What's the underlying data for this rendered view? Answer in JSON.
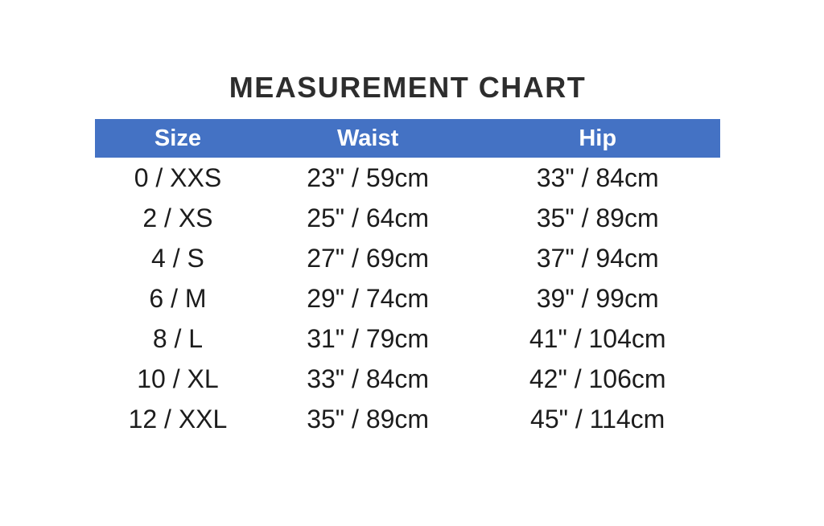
{
  "title": "MEASUREMENT CHART",
  "table": {
    "header_bg": "#4472C4",
    "header_text_color": "#FFFFFF",
    "body_text_color": "#1C1C1C",
    "columns": [
      "Size",
      "Waist",
      "Hip"
    ],
    "rows": [
      [
        "0 / XXS",
        "23\" / 59cm",
        "33\" / 84cm"
      ],
      [
        "2 / XS",
        "25\" / 64cm",
        "35\" / 89cm"
      ],
      [
        "4 / S",
        "27\" / 69cm",
        "37\" / 94cm"
      ],
      [
        "6 / M",
        "29\" / 74cm",
        "39\" / 99cm"
      ],
      [
        "8 / L",
        "31\" / 79cm",
        "41\" / 104cm"
      ],
      [
        "10 / XL",
        "33\" / 84cm",
        "42\" / 106cm"
      ],
      [
        "12 / XXL",
        "35\" / 89cm",
        "45\" / 114cm"
      ]
    ]
  },
  "chart_data": {
    "type": "table",
    "title": "MEASUREMENT CHART",
    "columns": [
      "Size",
      "Waist",
      "Hip"
    ],
    "rows": [
      {
        "size": "0 / XXS",
        "waist_in": 23,
        "waist_cm": 59,
        "hip_in": 33,
        "hip_cm": 84
      },
      {
        "size": "2 / XS",
        "waist_in": 25,
        "waist_cm": 64,
        "hip_in": 35,
        "hip_cm": 89
      },
      {
        "size": "4 / S",
        "waist_in": 27,
        "waist_cm": 69,
        "hip_in": 37,
        "hip_cm": 94
      },
      {
        "size": "6 / M",
        "waist_in": 29,
        "waist_cm": 74,
        "hip_in": 39,
        "hip_cm": 99
      },
      {
        "size": "8 / L",
        "waist_in": 31,
        "waist_cm": 79,
        "hip_in": 41,
        "hip_cm": 104
      },
      {
        "size": "10 / XL",
        "waist_in": 33,
        "waist_cm": 84,
        "hip_in": 42,
        "hip_cm": 106
      },
      {
        "size": "12 / XXL",
        "waist_in": 35,
        "waist_cm": 89,
        "hip_in": 45,
        "hip_cm": 114
      }
    ],
    "layout_hints": {
      "header_background": "#4472C4",
      "header_text": "white bold",
      "grid": "none",
      "alignment": "center"
    }
  }
}
